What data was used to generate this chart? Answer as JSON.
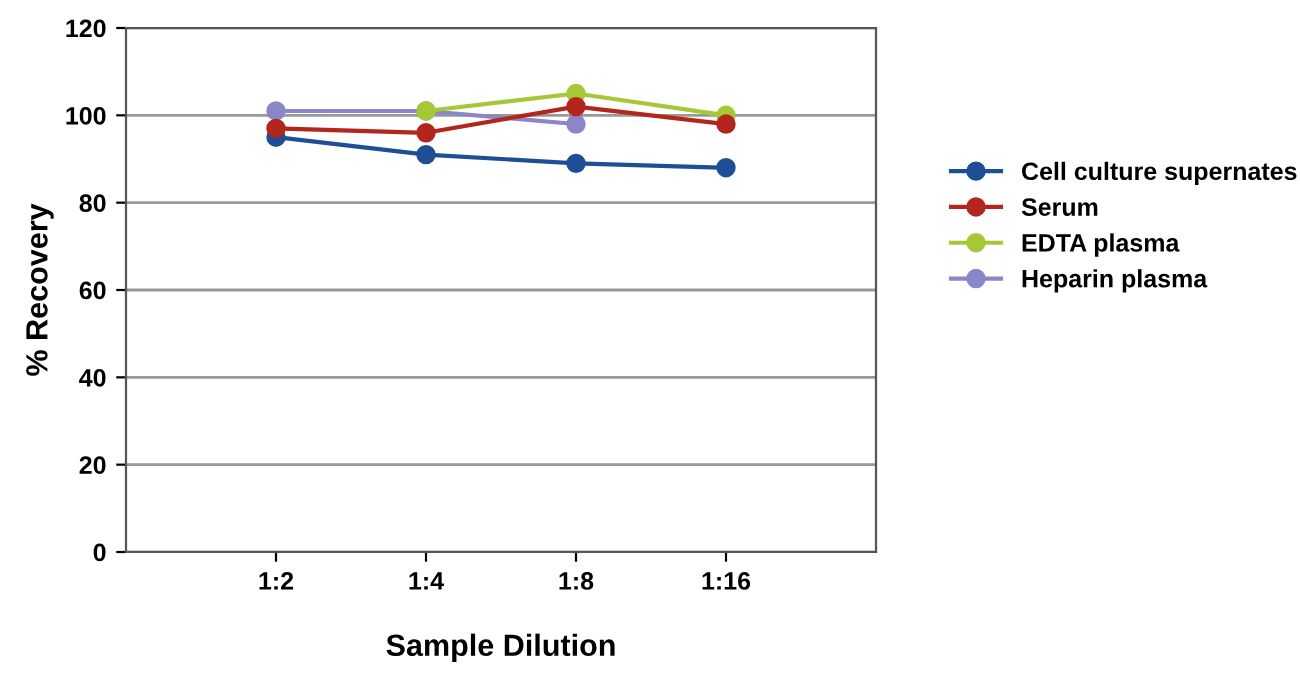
{
  "chart_data": {
    "type": "line",
    "xlabel": "Sample Dilution",
    "ylabel": "% Recovery",
    "categories": [
      "1:2",
      "1:4",
      "1:8",
      "1:16"
    ],
    "series": [
      {
        "name": "Cell culture supernates",
        "color": "#1f4e96",
        "values": [
          95,
          91,
          89,
          88
        ]
      },
      {
        "name": "Serum",
        "color": "#b3261e",
        "values": [
          97,
          96,
          102,
          98
        ]
      },
      {
        "name": "EDTA plasma",
        "color": "#a6c837",
        "values": [
          null,
          101,
          105,
          100
        ]
      },
      {
        "name": "Heparin plasma",
        "color": "#8a86c8",
        "values": [
          101,
          101,
          98,
          null
        ]
      }
    ],
    "ylim": [
      0,
      120
    ],
    "yticks": [
      0,
      20,
      40,
      60,
      80,
      100,
      120
    ],
    "grid": "y",
    "legend": "right",
    "marker": "circle",
    "line_style": "solid"
  }
}
